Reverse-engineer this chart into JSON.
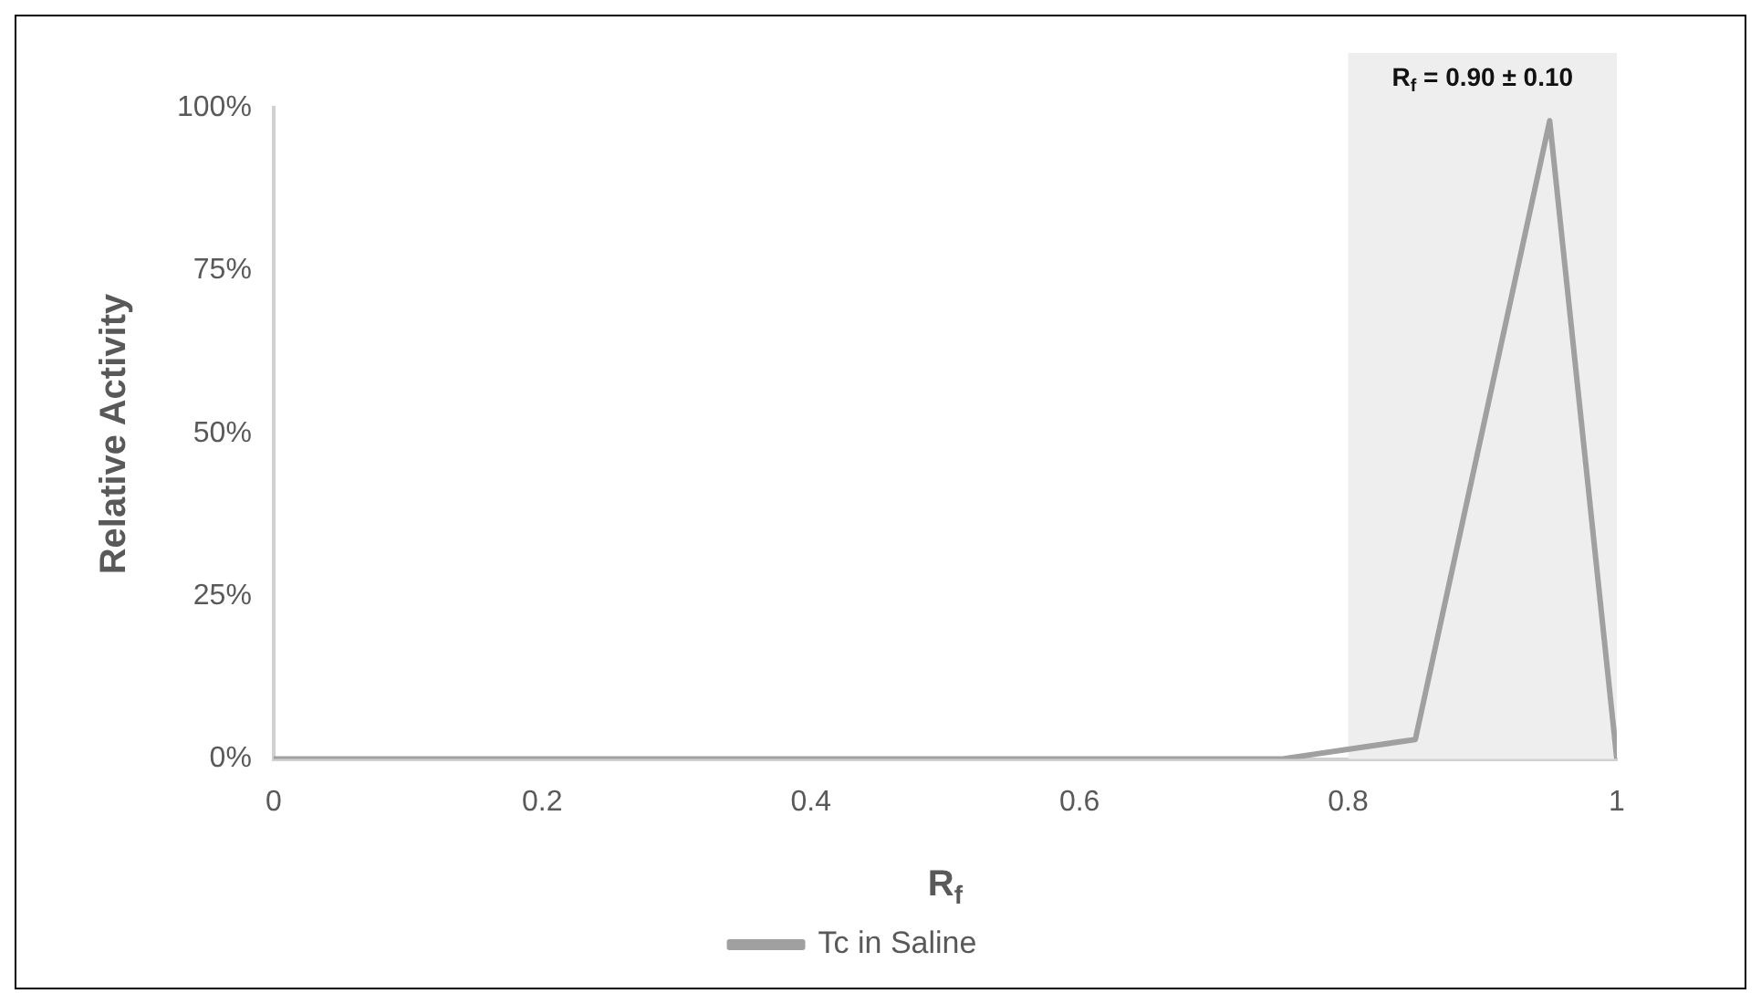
{
  "chart_data": {
    "type": "line",
    "xlabel": "R$_{f}$",
    "ylabel": "Relative Activity",
    "x": [
      0,
      0.75,
      0.85,
      0.95,
      1
    ],
    "series": [
      {
        "name": "Tc in Saline",
        "color": "#a0a0a0",
        "values": [
          0,
          0,
          3,
          98,
          0
        ]
      }
    ],
    "xlim": [
      0,
      1
    ],
    "xticks": [
      0,
      0.2,
      0.4,
      0.6,
      0.8,
      1
    ],
    "ylim": [
      0,
      100
    ],
    "yticks": [
      {
        "value": 0,
        "label": "0%"
      },
      {
        "value": 25,
        "label": "25%"
      },
      {
        "value": 50,
        "label": "50%"
      },
      {
        "value": 75,
        "label": "75%"
      },
      {
        "value": 100,
        "label": "100%"
      }
    ],
    "bands": [
      {
        "axis": "x",
        "from": 0.8,
        "to": 1,
        "label": "R$_{f}$ = 0.90 ± 0.10",
        "color": "#eeeeee"
      }
    ],
    "grid": false,
    "legend": "bottom",
    "marker": "none",
    "line_style": "solid"
  }
}
